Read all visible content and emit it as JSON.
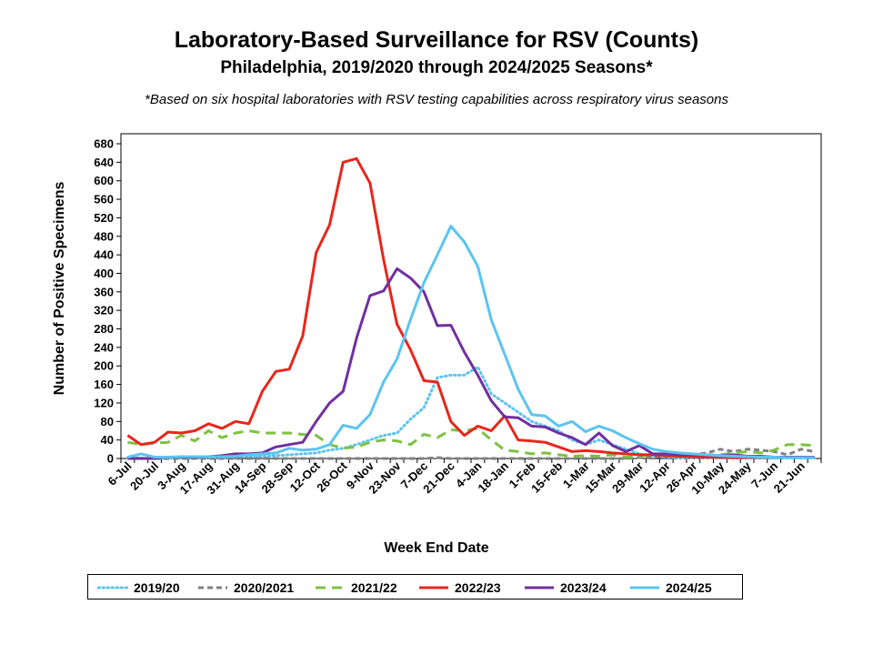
{
  "chart_data": {
    "type": "line",
    "title": "Laboratory-Based Surveillance for RSV (Counts)",
    "subtitle": "Philadelphia, 2019/2020 through 2024/2025 Seasons*",
    "note": "*Based on six hospital laboratories with RSV testing capabilities across respiratory virus seasons",
    "xlabel": "Week End Date",
    "ylabel": "Number of Positive Specimens",
    "ylim": [
      0,
      680
    ],
    "yticks": [
      0,
      40,
      80,
      120,
      160,
      200,
      240,
      280,
      320,
      360,
      400,
      440,
      480,
      520,
      560,
      600,
      640,
      680
    ],
    "grid": false,
    "legend_position": "bottom",
    "x": [
      "6-Jul",
      "13-Jul",
      "20-Jul",
      "27-Jul",
      "3-Aug",
      "10-Aug",
      "17-Aug",
      "24-Aug",
      "31-Aug",
      "7-Sep",
      "14-Sep",
      "21-Sep",
      "28-Sep",
      "5-Oct",
      "12-Oct",
      "19-Oct",
      "26-Oct",
      "2-Nov",
      "9-Nov",
      "16-Nov",
      "23-Nov",
      "30-Nov",
      "7-Dec",
      "14-Dec",
      "21-Dec",
      "28-Dec",
      "4-Jan",
      "11-Jan",
      "18-Jan",
      "25-Jan",
      "1-Feb",
      "8-Feb",
      "15-Feb",
      "22-Feb",
      "1-Mar",
      "8-Mar",
      "15-Mar",
      "22-Mar",
      "29-Mar",
      "5-Apr",
      "12-Apr",
      "19-Apr",
      "26-Apr",
      "3-May",
      "10-May",
      "17-May",
      "24-May",
      "31-May",
      "7-Jun",
      "14-Jun",
      "21-Jun",
      "28-Jun"
    ],
    "xtick_labels": [
      "6-Jul",
      "20-Jul",
      "3-Aug",
      "17-Aug",
      "31-Aug",
      "14-Sep",
      "28-Sep",
      "12-Oct",
      "26-Oct",
      "9-Nov",
      "23-Nov",
      "7-Dec",
      "21-Dec",
      "4-Jan",
      "18-Jan",
      "1-Feb",
      "15-Feb",
      "1-Mar",
      "15-Mar",
      "29-Mar",
      "12-Apr",
      "26-Apr",
      "10-May",
      "24-May",
      "7-Jun",
      "21-Jun"
    ],
    "series": [
      {
        "name": "2019/20",
        "color": "#5bc4f0",
        "dash": "dot",
        "values": [
          2,
          1,
          0,
          1,
          1,
          1,
          2,
          2,
          3,
          4,
          5,
          6,
          8,
          10,
          12,
          18,
          22,
          30,
          40,
          50,
          55,
          85,
          110,
          175,
          180,
          180,
          198,
          140,
          120,
          100,
          80,
          70,
          60,
          40,
          30,
          40,
          30,
          20,
          10,
          5,
          3,
          2,
          2,
          2,
          1,
          1,
          1,
          1,
          1,
          1,
          1,
          1
        ]
      },
      {
        "name": "2020/2021",
        "color": "#808080",
        "dash": "dash",
        "values": [
          0,
          0,
          0,
          0,
          0,
          0,
          0,
          0,
          0,
          0,
          0,
          0,
          0,
          0,
          0,
          0,
          0,
          0,
          0,
          0,
          0,
          0,
          0,
          2,
          0,
          0,
          0,
          0,
          0,
          0,
          0,
          0,
          0,
          0,
          0,
          0,
          0,
          0,
          2,
          3,
          5,
          6,
          8,
          12,
          20,
          15,
          20,
          18,
          15,
          8,
          20,
          15
        ]
      },
      {
        "name": "2021/22",
        "color": "#7dc242",
        "dash": "longdash",
        "values": [
          35,
          30,
          33,
          35,
          50,
          38,
          60,
          45,
          55,
          60,
          55,
          55,
          55,
          52,
          50,
          30,
          22,
          25,
          35,
          40,
          38,
          30,
          52,
          45,
          62,
          60,
          65,
          40,
          18,
          15,
          10,
          12,
          8,
          5,
          6,
          5,
          8,
          3,
          5,
          8,
          8,
          8,
          6,
          6,
          8,
          12,
          15,
          12,
          18,
          30,
          30,
          28
        ]
      },
      {
        "name": "2022/23",
        "color": "#e8261c",
        "dash": "solid",
        "values": [
          50,
          30,
          35,
          57,
          55,
          60,
          75,
          65,
          80,
          75,
          145,
          188,
          193,
          265,
          445,
          505,
          640,
          648,
          595,
          430,
          290,
          235,
          168,
          165,
          80,
          50,
          70,
          60,
          92,
          40,
          38,
          35,
          25,
          15,
          17,
          15,
          12,
          10,
          8,
          8,
          6,
          5,
          4,
          3,
          3,
          2,
          2,
          2,
          3,
          3,
          3,
          2
        ]
      },
      {
        "name": "2023/24",
        "color": "#7030a0",
        "dash": "solid",
        "values": [
          0,
          0,
          0,
          3,
          3,
          3,
          4,
          6,
          10,
          10,
          12,
          25,
          30,
          35,
          80,
          120,
          145,
          260,
          352,
          362,
          410,
          390,
          360,
          287,
          288,
          230,
          180,
          125,
          90,
          88,
          70,
          68,
          55,
          45,
          30,
          55,
          28,
          15,
          28,
          10,
          10,
          8,
          8,
          8,
          6,
          8,
          5,
          5,
          3,
          3,
          3,
          3
        ]
      },
      {
        "name": "2024/25",
        "color": "#5bc4f0",
        "dash": "solid",
        "values": [
          3,
          10,
          3,
          3,
          4,
          4,
          4,
          4,
          5,
          8,
          10,
          12,
          22,
          18,
          20,
          30,
          72,
          65,
          95,
          165,
          215,
          300,
          380,
          440,
          502,
          468,
          415,
          300,
          225,
          150,
          95,
          92,
          70,
          80,
          58,
          70,
          60,
          45,
          32,
          20,
          15,
          12,
          10,
          8,
          6,
          5,
          4,
          3,
          3,
          2,
          2,
          2
        ]
      }
    ]
  }
}
